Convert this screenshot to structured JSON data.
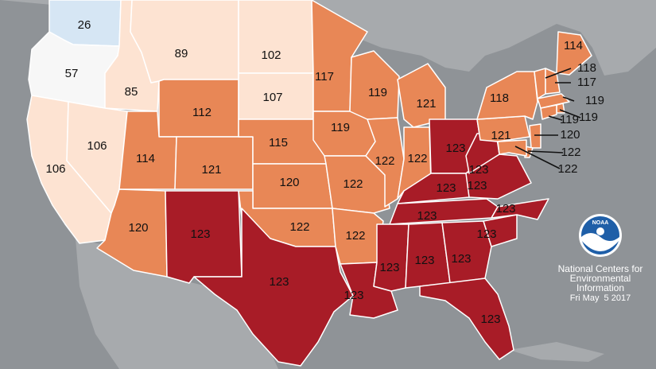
{
  "map": {
    "colors": {
      "background": "#8f9397",
      "land_other": "#a7aaad",
      "state_border": "#ffffff",
      "rank_light_blue": "#d6e6f4",
      "rank_white": "#f7f7f7",
      "rank_very_light": "#fde3d2",
      "rank_light": "#fbd0b3",
      "rank_medium": "#f0a67e",
      "rank_orange": "#e88756",
      "rank_darkred": "#a81c27"
    },
    "states": [
      {
        "name": "WA",
        "rank": "26",
        "class": "rank_light_blue"
      },
      {
        "name": "OR",
        "rank": "57",
        "class": "rank_white"
      },
      {
        "name": "CA",
        "rank": "106",
        "class": "rank_very_light"
      },
      {
        "name": "ID",
        "rank": "85",
        "class": "rank_very_light"
      },
      {
        "name": "NV",
        "rank": "106",
        "class": "rank_very_light"
      },
      {
        "name": "MT",
        "rank": "89",
        "class": "rank_very_light"
      },
      {
        "name": "WY",
        "rank": "112",
        "class": "rank_orange"
      },
      {
        "name": "UT",
        "rank": "114",
        "class": "rank_orange"
      },
      {
        "name": "AZ",
        "rank": "120",
        "class": "rank_orange"
      },
      {
        "name": "CO",
        "rank": "121",
        "class": "rank_orange"
      },
      {
        "name": "NM",
        "rank": "123",
        "class": "rank_darkred"
      },
      {
        "name": "ND",
        "rank": "102",
        "class": "rank_very_light"
      },
      {
        "name": "SD",
        "rank": "107",
        "class": "rank_very_light"
      },
      {
        "name": "NE",
        "rank": "115",
        "class": "rank_orange"
      },
      {
        "name": "KS",
        "rank": "120",
        "class": "rank_orange"
      },
      {
        "name": "OK",
        "rank": "122",
        "class": "rank_orange"
      },
      {
        "name": "TX",
        "rank": "123",
        "class": "rank_darkred"
      },
      {
        "name": "MN",
        "rank": "117",
        "class": "rank_orange"
      },
      {
        "name": "IA",
        "rank": "119",
        "class": "rank_orange"
      },
      {
        "name": "MO",
        "rank": "122",
        "class": "rank_orange"
      },
      {
        "name": "AR",
        "rank": "122",
        "class": "rank_orange"
      },
      {
        "name": "LA",
        "rank": "123",
        "class": "rank_darkred"
      },
      {
        "name": "WI",
        "rank": "119",
        "class": "rank_orange"
      },
      {
        "name": "IL",
        "rank": "122",
        "class": "rank_orange"
      },
      {
        "name": "MI",
        "rank": "121",
        "class": "rank_orange"
      },
      {
        "name": "IN",
        "rank": "122",
        "class": "rank_orange"
      },
      {
        "name": "OH",
        "rank": "123",
        "class": "rank_darkred"
      },
      {
        "name": "KY",
        "rank": "123",
        "class": "rank_darkred"
      },
      {
        "name": "TN",
        "rank": "123",
        "class": "rank_darkred"
      },
      {
        "name": "MS",
        "rank": "123",
        "class": "rank_darkred"
      },
      {
        "name": "AL",
        "rank": "123",
        "class": "rank_darkred"
      },
      {
        "name": "GA",
        "rank": "123",
        "class": "rank_darkred"
      },
      {
        "name": "FL",
        "rank": "123",
        "class": "rank_darkred"
      },
      {
        "name": "SC",
        "rank": "123",
        "class": "rank_darkred"
      },
      {
        "name": "NC",
        "rank": "123",
        "class": "rank_darkred"
      },
      {
        "name": "VA",
        "rank": "123",
        "class": "rank_darkred"
      },
      {
        "name": "WV",
        "rank": "123",
        "class": "rank_darkred"
      },
      {
        "name": "PA",
        "rank": "121",
        "class": "rank_orange"
      },
      {
        "name": "NY",
        "rank": "118",
        "class": "rank_orange"
      },
      {
        "name": "ME",
        "rank": "114",
        "class": "rank_orange"
      },
      {
        "name": "VT",
        "rank": "118",
        "class": "rank_orange"
      },
      {
        "name": "NH",
        "rank": "117",
        "class": "rank_orange"
      },
      {
        "name": "MA",
        "rank": "119",
        "class": "rank_orange"
      },
      {
        "name": "RI",
        "rank": "119",
        "class": "rank_orange"
      },
      {
        "name": "CT",
        "rank": "119",
        "class": "rank_orange"
      },
      {
        "name": "NJ",
        "rank": "120",
        "class": "rank_orange"
      },
      {
        "name": "DE",
        "rank": "122",
        "class": "rank_orange"
      },
      {
        "name": "MD",
        "rank": "122",
        "class": "rank_orange"
      }
    ]
  },
  "logo": {
    "text": "NOAA"
  },
  "credit": {
    "line1": "National Centers for",
    "line2": "Environmental",
    "line3": "Information",
    "date": "Fri May  5 2017"
  }
}
